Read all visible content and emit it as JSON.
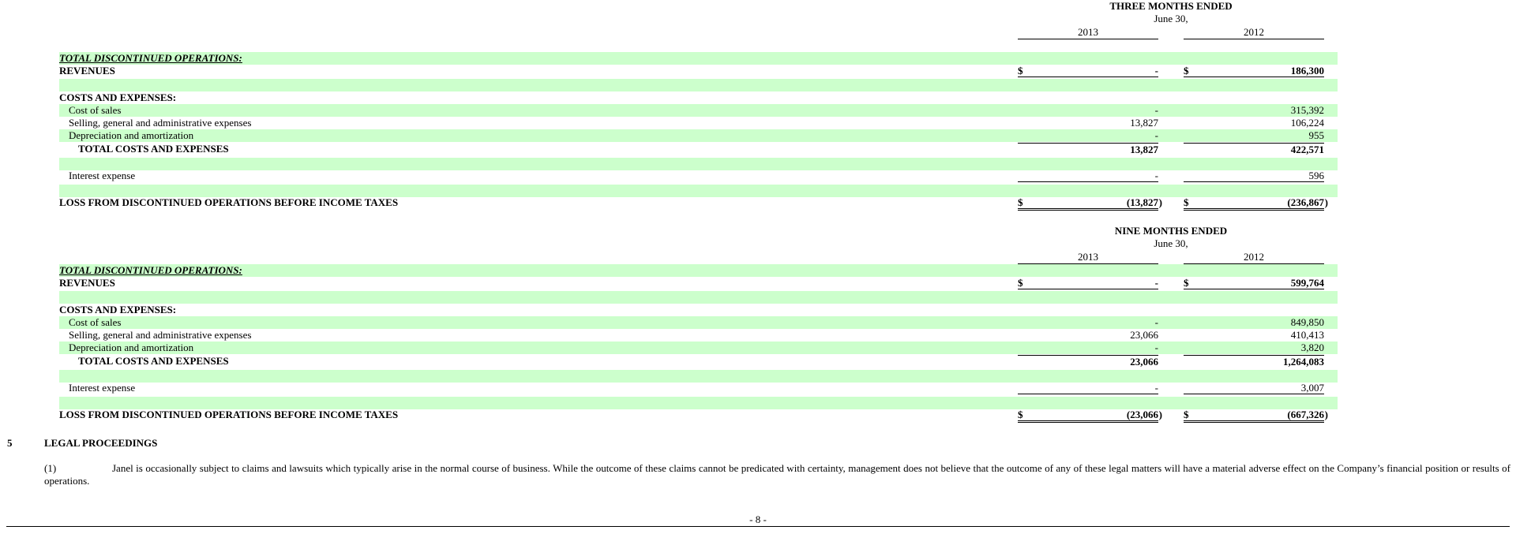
{
  "three_months": {
    "title": "THREE MONTHS ENDED",
    "subtitle": "June 30,",
    "col1": "2013",
    "col2": "2012",
    "section_label": "TOTAL DISCONTINUED OPERATIONS:",
    "revenues_label": "REVENUES",
    "currency": "$",
    "revenues": [
      "-",
      "186,300"
    ],
    "costs_label": "COSTS AND EXPENSES:",
    "cost_of_sales_label": "Cost of sales",
    "cost_of_sales": [
      "-",
      "315,392"
    ],
    "sga_label": "Selling, general and administrative expenses",
    "sga": [
      "13,827",
      "106,224"
    ],
    "dep_label": "Depreciation and amortization",
    "dep": [
      "-",
      "955"
    ],
    "total_costs_label": "TOTAL COSTS AND EXPENSES",
    "total_costs": [
      "13,827",
      "422,571"
    ],
    "interest_label": "Interest expense",
    "interest": [
      "-",
      "596"
    ],
    "loss_label": "LOSS FROM DISCONTINUED OPERATIONS BEFORE INCOME TAXES",
    "loss": [
      "(13,827",
      "(236,867"
    ]
  },
  "nine_months": {
    "title": "NINE MONTHS ENDED",
    "subtitle": "June 30,",
    "col1": "2013",
    "col2": "2012",
    "section_label": "TOTAL DISCONTINUED OPERATIONS:",
    "revenues_label": "REVENUES",
    "currency": "$",
    "revenues": [
      "-",
      "599,764"
    ],
    "costs_label": "COSTS AND EXPENSES:",
    "cost_of_sales_label": "Cost of sales",
    "cost_of_sales": [
      "-",
      "849,850"
    ],
    "sga_label": "Selling, general and administrative expenses",
    "sga": [
      "23,066",
      "410,413"
    ],
    "dep_label": "Depreciation and amortization",
    "dep": [
      "-",
      "3,820"
    ],
    "total_costs_label": "TOTAL COSTS AND EXPENSES",
    "total_costs": [
      "23,066",
      "1,264,083"
    ],
    "interest_label": "Interest expense",
    "interest": [
      "-",
      "3,007"
    ],
    "loss_label": "LOSS FROM DISCONTINUED OPERATIONS BEFORE INCOME TAXES",
    "loss": [
      "(23,066",
      "(667,326"
    ]
  },
  "close_paren": ")",
  "legal": {
    "number": "5",
    "title": "LEGAL PROCEEDINGS",
    "item_number": "(1)",
    "item_text": "Janel is occasionally subject to claims and lawsuits which typically arise in the normal course of business. While the outcome of these claims cannot be predicated with certainty, management does not believe that the outcome of any of these legal matters will have a material adverse effect on the Company’s financial position or results of operations."
  },
  "page_number": "- 8 -"
}
